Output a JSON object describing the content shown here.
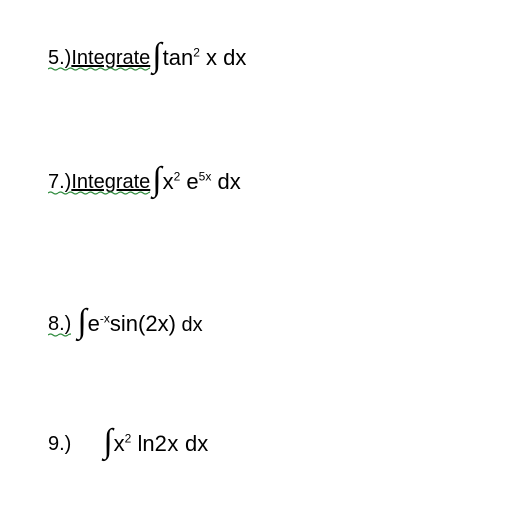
{
  "colors": {
    "text": "#000000",
    "background": "#ffffff",
    "wavy_underline": "#2e8b3d"
  },
  "typography": {
    "font_family": "Arial, Helvetica, sans-serif",
    "label_fontsize": 20,
    "math_fontsize": 22,
    "sup_fontsize": 12,
    "integral_fontsize": 34
  },
  "problems": {
    "p5": {
      "number": "5.)",
      "label_text": "  Integrate ",
      "has_wavy_underline": true,
      "integral": "∫",
      "fn": "tan",
      "sup1": "2",
      "after1": " x dx"
    },
    "p7": {
      "number": "7.)",
      "label_text": "  Integrate ",
      "has_wavy_underline": true,
      "integral": "∫",
      "var1": "x",
      "sup1": "2",
      "mid": " e",
      "sup2": "5x",
      "after": " dx"
    },
    "p8": {
      "number": "8.)",
      "has_wavy_underline": true,
      "integral": "∫",
      "var1": "e",
      "sup_neg": "-x",
      "fn": "sin(2x)",
      "after": " dx"
    },
    "p9": {
      "number": "9.)",
      "has_wavy_underline": false,
      "integral": "∫",
      "var1": "x",
      "sup1": "2",
      "mid": " ln",
      "arg": "2x",
      "after": " dx"
    }
  }
}
